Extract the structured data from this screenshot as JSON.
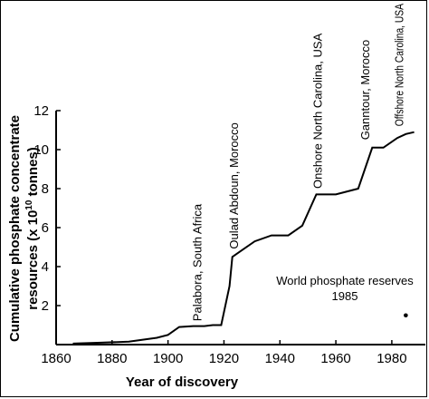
{
  "chart_data": {
    "type": "line",
    "xlabel": "Year of discovery",
    "ylabel_line1": "Cumulative phosphate concentrate",
    "ylabel_line2_prefix": "resources (x 10",
    "ylabel_exponent": "10",
    "ylabel_line2_suffix": " tonnes)",
    "xlim": [
      1860,
      1992
    ],
    "ylim": [
      0,
      12
    ],
    "x_ticks": [
      1860,
      1880,
      1900,
      1920,
      1940,
      1960,
      1980
    ],
    "y_ticks": [
      2,
      4,
      6,
      8,
      10,
      12
    ],
    "grid": false,
    "series": [
      {
        "x": [
          1866,
          1876,
          1886,
          1891,
          1896,
          1900,
          1904,
          1909,
          1913,
          1916,
          1919,
          1922,
          1923,
          1926,
          1931,
          1937,
          1943,
          1948,
          1953,
          1960,
          1968,
          1973,
          1977,
          1982,
          1985,
          1988
        ],
        "y": [
          0.05,
          0.1,
          0.15,
          0.25,
          0.35,
          0.5,
          0.9,
          0.95,
          0.95,
          1.0,
          1.0,
          3.0,
          4.5,
          4.8,
          5.3,
          5.6,
          5.6,
          6.1,
          7.7,
          7.7,
          8.0,
          10.1,
          10.1,
          10.6,
          10.8,
          10.9
        ]
      }
    ],
    "annotations": [
      {
        "text": "Palabora, South Africa",
        "x": 1912,
        "y": 1.2
      },
      {
        "text": "Oulad Abdoun, Morocco",
        "x": 1925,
        "y": 4.9
      },
      {
        "text": "Onshore North Carolina, USA",
        "x": 1955,
        "y": 8.0
      },
      {
        "text": "Ganntour, Morocco",
        "x": 1972,
        "y": 10.5
      },
      {
        "text": "Offshore North Carolina, USA",
        "x": 1984,
        "y": 11.2
      }
    ],
    "reserves_point": {
      "label_line1": "World phosphate reserves",
      "label_line2": "1985",
      "x": 1985,
      "y": 1.5
    }
  }
}
